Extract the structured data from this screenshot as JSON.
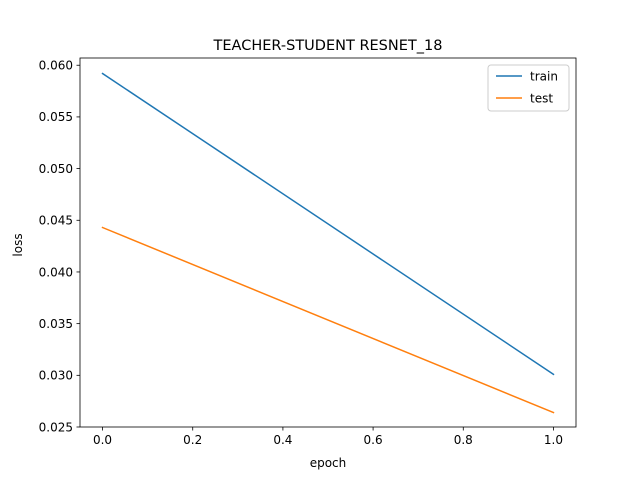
{
  "chart_data": {
    "type": "line",
    "title": "TEACHER-STUDENT RESNET_18",
    "xlabel": "epoch",
    "ylabel": "loss",
    "xlim": [
      -0.05,
      1.05
    ],
    "ylim": [
      0.025,
      0.0607
    ],
    "xticks": [
      0.0,
      0.2,
      0.4,
      0.6,
      0.8,
      1.0
    ],
    "xtick_labels": [
      "0.0",
      "0.2",
      "0.4",
      "0.6",
      "0.8",
      "1.0"
    ],
    "yticks": [
      0.025,
      0.03,
      0.035,
      0.04,
      0.045,
      0.05,
      0.055,
      0.06
    ],
    "ytick_labels": [
      "0.025",
      "0.030",
      "0.035",
      "0.040",
      "0.045",
      "0.050",
      "0.055",
      "0.060"
    ],
    "grid": false,
    "legend_position": "top-right",
    "series": [
      {
        "name": "train",
        "color": "#1f77b4",
        "x": [
          0.0,
          1.0
        ],
        "values": [
          0.0592,
          0.0301
        ]
      },
      {
        "name": "test",
        "color": "#ff7f0e",
        "x": [
          0.0,
          1.0
        ],
        "values": [
          0.0443,
          0.0264
        ]
      }
    ]
  }
}
